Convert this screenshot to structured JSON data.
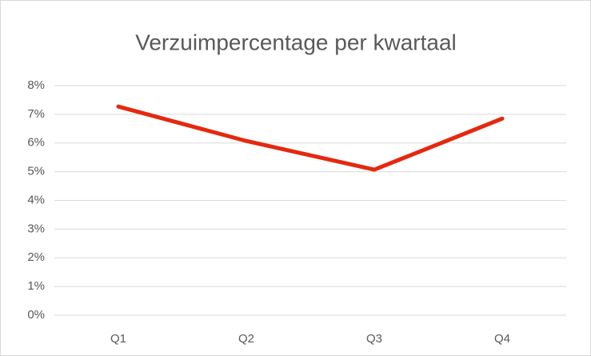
{
  "chart_data": {
    "type": "line",
    "title": "Verzuimpercentage per kwartaal",
    "categories": [
      "Q1",
      "Q2",
      "Q3",
      "Q4"
    ],
    "values": [
      7.27,
      6.07,
      5.07,
      6.85
    ],
    "color": "#e3290f",
    "ylim": [
      0,
      8
    ],
    "yticks": [
      {
        "value": 0,
        "label": "0%"
      },
      {
        "value": 1,
        "label": "1%"
      },
      {
        "value": 2,
        "label": "2%"
      },
      {
        "value": 3,
        "label": "3%"
      },
      {
        "value": 4,
        "label": "4%"
      },
      {
        "value": 5,
        "label": "5%"
      },
      {
        "value": 6,
        "label": "6%"
      },
      {
        "value": 7,
        "label": "7%"
      },
      {
        "value": 8,
        "label": "8%"
      }
    ],
    "grid": true
  }
}
